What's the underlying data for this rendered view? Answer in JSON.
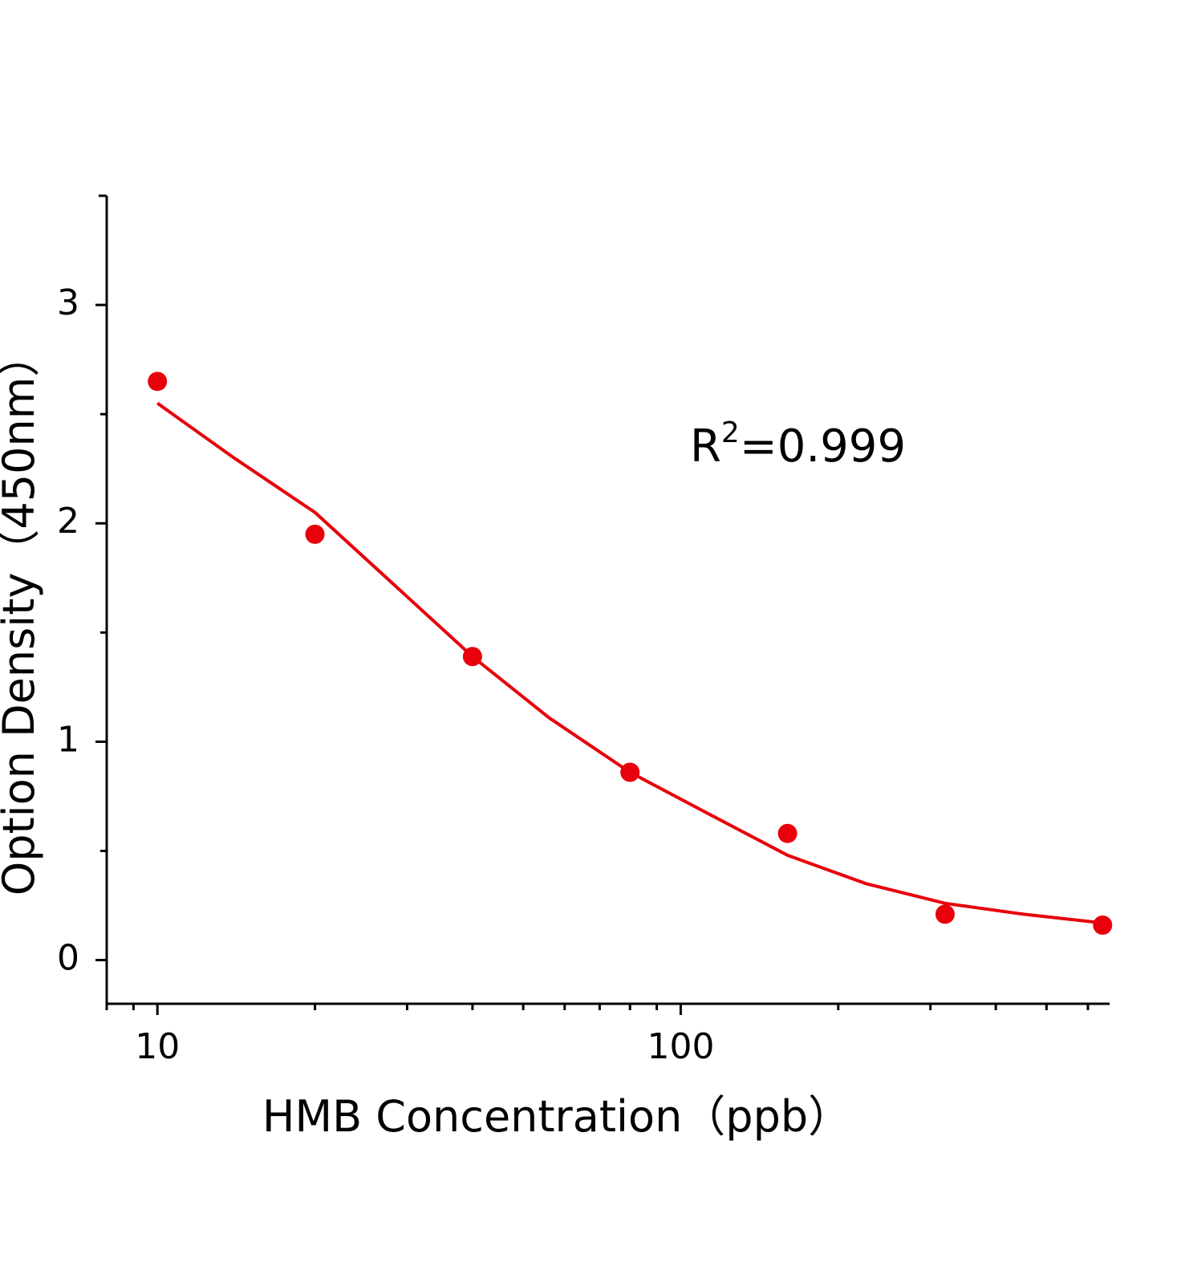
{
  "chart_data": {
    "type": "scatter",
    "x_label": "HMB Concentration（ppb）",
    "y_label": "Option Density（450nm）",
    "annotation": [
      "R",
      "2",
      "=0.999"
    ],
    "xscale": "log",
    "xlim": [
      8,
      660
    ],
    "xticks": [
      10,
      100
    ],
    "xminorticks": [
      8,
      9,
      20,
      30,
      40,
      50,
      60,
      70,
      80,
      90,
      200,
      300,
      400,
      500,
      600
    ],
    "ylim": [
      -0.2,
      3.5
    ],
    "yticks": [
      0,
      1,
      2,
      3
    ],
    "yminorticks": [
      0.5,
      1.5,
      2.5
    ],
    "series": [
      {
        "style": "markers",
        "color": "#e8000b",
        "x": [
          10,
          20,
          40,
          80,
          160,
          320,
          640
        ],
        "values": [
          2.65,
          1.95,
          1.39,
          0.86,
          0.58,
          0.21,
          0.16
        ]
      },
      {
        "style": "line",
        "color": "#e8000b",
        "x": [
          10,
          14,
          20,
          28,
          40,
          56,
          80,
          113,
          160,
          226,
          320,
          452,
          640
        ],
        "values": [
          2.55,
          2.3,
          2.05,
          1.73,
          1.39,
          1.11,
          0.86,
          0.67,
          0.48,
          0.35,
          0.26,
          0.21,
          0.17
        ]
      }
    ]
  }
}
